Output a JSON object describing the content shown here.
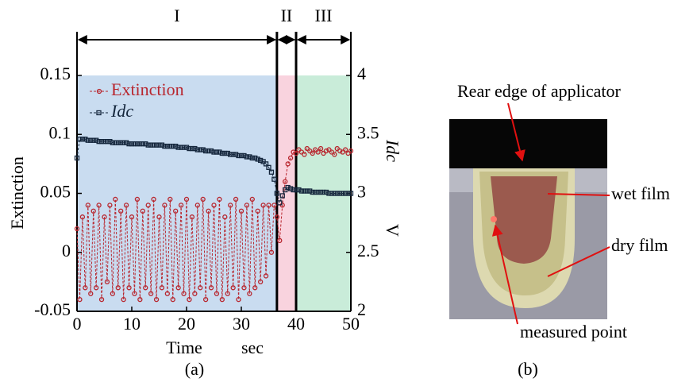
{
  "chart_data": {
    "type": "line",
    "xlabel": "Time",
    "xunit": "sec",
    "ylabel": "Extinction",
    "y2label": "Idc",
    "y2unit": "V",
    "panel_label": "(a)",
    "xlim": [
      0,
      50
    ],
    "xticks": [
      0,
      10,
      20,
      30,
      40,
      50
    ],
    "ylim": [
      -0.05,
      0.15
    ],
    "yticks": [
      -0.05,
      0,
      0.05,
      0.1,
      0.15
    ],
    "y2lim": [
      2,
      4
    ],
    "y2ticks": [
      2,
      2.5,
      3,
      3.5,
      4
    ],
    "legend": "top-left",
    "regions": [
      {
        "label": "I",
        "range": [
          0,
          36.5
        ],
        "color": "#c9dcf0"
      },
      {
        "label": "II",
        "range": [
          36.5,
          40
        ],
        "color": "#f9d3de"
      },
      {
        "label": "III",
        "range": [
          40,
          50
        ],
        "color": "#c9ecd9"
      }
    ],
    "x": [
      0,
      0.5,
      1,
      1.5,
      2,
      2.5,
      3,
      3.5,
      4,
      4.5,
      5,
      5.5,
      6,
      6.5,
      7,
      7.5,
      8,
      8.5,
      9,
      9.5,
      10,
      10.5,
      11,
      11.5,
      12,
      12.5,
      13,
      13.5,
      14,
      14.5,
      15,
      15.5,
      16,
      16.5,
      17,
      17.5,
      18,
      18.5,
      19,
      19.5,
      20,
      20.5,
      21,
      21.5,
      22,
      22.5,
      23,
      23.5,
      24,
      24.5,
      25,
      25.5,
      26,
      26.5,
      27,
      27.5,
      28,
      28.5,
      29,
      29.5,
      30,
      30.5,
      31,
      31.5,
      32,
      32.5,
      33,
      33.5,
      34,
      34.5,
      35,
      35.5,
      36,
      36.5,
      37,
      37.5,
      38,
      38.5,
      39,
      39.5,
      40,
      40.5,
      41,
      41.5,
      42,
      42.5,
      43,
      43.5,
      44,
      44.5,
      45,
      45.5,
      46,
      46.5,
      47,
      47.5,
      48,
      48.5,
      49,
      49.5,
      50
    ],
    "series": [
      {
        "name": "Extinction",
        "color": "#b8262e",
        "marker": "circle",
        "values": [
          0.02,
          -0.04,
          0.03,
          -0.03,
          0.04,
          -0.035,
          0.035,
          -0.03,
          0.04,
          -0.04,
          0.03,
          -0.025,
          0.04,
          -0.035,
          0.045,
          -0.03,
          0.035,
          -0.04,
          0.04,
          -0.03,
          0.03,
          -0.035,
          0.045,
          -0.04,
          0.035,
          -0.03,
          0.04,
          -0.035,
          0.045,
          -0.04,
          0.03,
          -0.03,
          0.04,
          -0.035,
          0.045,
          -0.04,
          0.035,
          -0.03,
          0.04,
          -0.035,
          0.045,
          -0.04,
          0.03,
          -0.035,
          0.04,
          -0.03,
          0.045,
          -0.04,
          0.035,
          -0.03,
          0.04,
          -0.035,
          0.045,
          -0.04,
          0.03,
          -0.035,
          0.04,
          -0.03,
          0.045,
          -0.04,
          0.035,
          -0.03,
          0.04,
          -0.035,
          0.045,
          -0.03,
          0.035,
          -0.025,
          0.04,
          -0.02,
          0.04,
          0.0,
          0.04,
          0.03,
          0.01,
          0.04,
          0.06,
          0.075,
          0.08,
          0.085,
          0.084,
          0.087,
          0.085,
          0.083,
          0.088,
          0.086,
          0.084,
          0.087,
          0.085,
          0.088,
          0.084,
          0.086,
          0.087,
          0.085,
          0.083,
          0.088,
          0.086,
          0.085,
          0.087,
          0.084,
          0.086
        ]
      },
      {
        "name": "Idc",
        "color": "#14263c",
        "marker": "square",
        "axis": "y2",
        "values": [
          3.3,
          3.46,
          3.46,
          3.46,
          3.45,
          3.45,
          3.45,
          3.45,
          3.44,
          3.44,
          3.44,
          3.44,
          3.44,
          3.43,
          3.43,
          3.43,
          3.43,
          3.43,
          3.43,
          3.42,
          3.42,
          3.42,
          3.42,
          3.42,
          3.42,
          3.42,
          3.41,
          3.41,
          3.41,
          3.41,
          3.41,
          3.41,
          3.4,
          3.4,
          3.4,
          3.4,
          3.4,
          3.39,
          3.39,
          3.39,
          3.39,
          3.38,
          3.38,
          3.38,
          3.37,
          3.37,
          3.37,
          3.36,
          3.36,
          3.36,
          3.35,
          3.35,
          3.35,
          3.34,
          3.34,
          3.34,
          3.33,
          3.33,
          3.33,
          3.32,
          3.32,
          3.32,
          3.31,
          3.31,
          3.3,
          3.3,
          3.29,
          3.28,
          3.27,
          3.25,
          3.22,
          3.18,
          3.12,
          3.0,
          2.92,
          2.98,
          3.03,
          3.05,
          3.04,
          3.03,
          3.03,
          3.03,
          3.02,
          3.02,
          3.02,
          3.02,
          3.01,
          3.01,
          3.01,
          3.01,
          3.01,
          3.01,
          3.0,
          3.0,
          3.0,
          3.0,
          3.0,
          3.0,
          3.0,
          3.0,
          3.0
        ]
      }
    ]
  },
  "photo": {
    "panel_label": "(b)",
    "labels": [
      "Rear edge of applicator",
      "wet film",
      "dry film",
      "measured point"
    ]
  }
}
